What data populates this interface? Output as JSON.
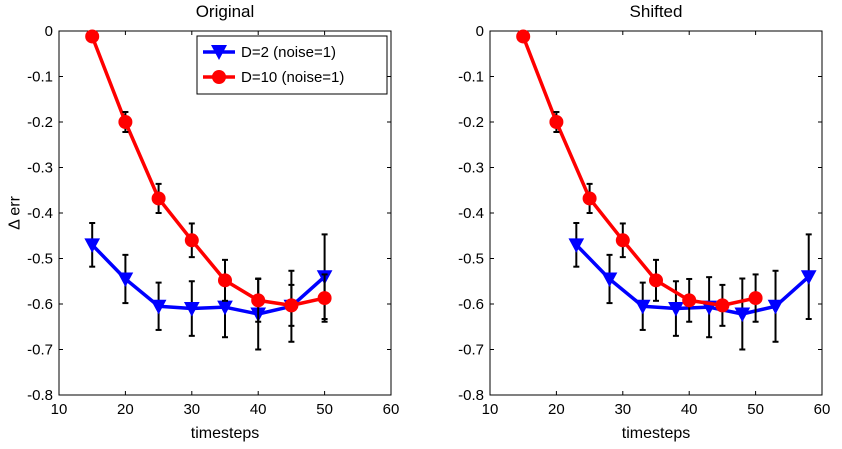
{
  "chart_data": [
    {
      "type": "line",
      "title": "Original",
      "xlabel": "timesteps",
      "ylabel": "Δ err",
      "xlim": [
        10,
        60
      ],
      "ylim": [
        -0.8,
        0
      ],
      "xticks": [
        10,
        20,
        30,
        40,
        50,
        60
      ],
      "yticks": [
        0,
        -0.1,
        -0.2,
        -0.3,
        -0.4,
        -0.5,
        -0.6,
        -0.7,
        -0.8
      ],
      "grid": false,
      "legend": "top-right",
      "series": [
        {
          "name": "D=2 (noise=1)",
          "color": "#0000ff",
          "marker": "triangle-down",
          "x": [
            15,
            20,
            25,
            30,
            35,
            40,
            45,
            50
          ],
          "y": [
            -0.47,
            -0.545,
            -0.605,
            -0.61,
            -0.607,
            -0.622,
            -0.605,
            -0.54
          ],
          "err": [
            0.048,
            0.053,
            0.052,
            0.06,
            0.066,
            0.078,
            0.078,
            0.093
          ]
        },
        {
          "name": "D=10 (noise=1)",
          "color": "#ff0000",
          "marker": "circle",
          "x": [
            15,
            20,
            25,
            30,
            35,
            40,
            45,
            50
          ],
          "y": [
            -0.012,
            -0.2,
            -0.368,
            -0.46,
            -0.548,
            -0.592,
            -0.603,
            -0.587
          ],
          "err": [
            0.006,
            0.022,
            0.032,
            0.037,
            0.045,
            0.047,
            0.045,
            0.052
          ]
        }
      ]
    },
    {
      "type": "line",
      "title": "Shifted",
      "xlabel": "timesteps",
      "ylabel": "",
      "xlim": [
        10,
        60
      ],
      "ylim": [
        -0.8,
        0
      ],
      "xticks": [
        10,
        20,
        30,
        40,
        50,
        60
      ],
      "yticks": [
        0,
        -0.1,
        -0.2,
        -0.3,
        -0.4,
        -0.5,
        -0.6,
        -0.7,
        -0.8
      ],
      "grid": false,
      "legend": "none",
      "series": [
        {
          "name": "D=2 (noise=1)",
          "color": "#0000ff",
          "marker": "triangle-down",
          "x": [
            23,
            28,
            33,
            38,
            43,
            48,
            53,
            58
          ],
          "y": [
            -0.47,
            -0.545,
            -0.605,
            -0.61,
            -0.607,
            -0.622,
            -0.605,
            -0.54
          ],
          "err": [
            0.048,
            0.053,
            0.052,
            0.06,
            0.066,
            0.078,
            0.078,
            0.093
          ]
        },
        {
          "name": "D=10 (noise=1)",
          "color": "#ff0000",
          "marker": "circle",
          "x": [
            15,
            20,
            25,
            30,
            35,
            40,
            45,
            50
          ],
          "y": [
            -0.012,
            -0.2,
            -0.368,
            -0.46,
            -0.548,
            -0.592,
            -0.603,
            -0.587
          ],
          "err": [
            0.006,
            0.022,
            0.032,
            0.037,
            0.045,
            0.047,
            0.045,
            0.052
          ]
        }
      ]
    }
  ]
}
